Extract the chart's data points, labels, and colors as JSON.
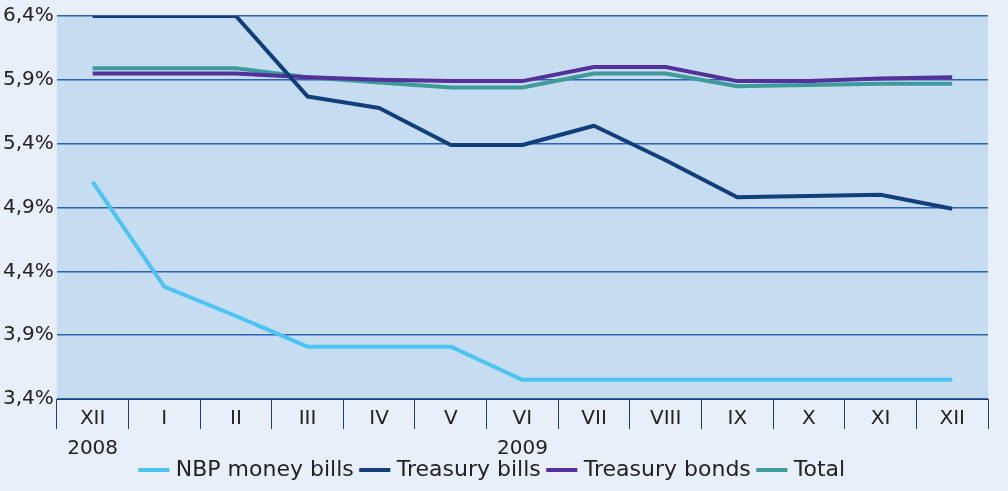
{
  "chart_data": {
    "type": "line",
    "categories": [
      "XII",
      "I",
      "II",
      "III",
      "IV",
      "V",
      "VI",
      "VII",
      "VIII",
      "IX",
      "X",
      "XI",
      "XII"
    ],
    "series": [
      {
        "name": "NBP money bills",
        "color": "#4cc3f0",
        "values": [
          5.1,
          4.28,
          4.05,
          3.81,
          3.81,
          3.81,
          3.55,
          3.55,
          3.55,
          3.55,
          3.55,
          3.55,
          3.55
        ]
      },
      {
        "name": "Treasury bills",
        "color": "#123f7a",
        "values": [
          6.4,
          6.4,
          6.4,
          5.77,
          5.68,
          5.39,
          5.39,
          5.54,
          5.27,
          4.98,
          4.99,
          5.0,
          4.89
        ]
      },
      {
        "name": "Treasury bonds",
        "color": "#54309a",
        "values": [
          5.95,
          5.95,
          5.95,
          5.92,
          5.9,
          5.89,
          5.89,
          6.0,
          6.0,
          5.89,
          5.89,
          5.91,
          5.92
        ]
      },
      {
        "name": "Total",
        "color": "#3f9a9c",
        "values": [
          5.99,
          5.99,
          5.99,
          5.92,
          5.88,
          5.84,
          5.84,
          5.95,
          5.95,
          5.85,
          5.86,
          5.87,
          5.87
        ]
      }
    ],
    "ylim": [
      3.4,
      6.4
    ],
    "yticks": [
      {
        "value": 3.4,
        "label": "3,4%"
      },
      {
        "value": 3.9,
        "label": "3,9%"
      },
      {
        "value": 4.4,
        "label": "4,4%"
      },
      {
        "value": 4.9,
        "label": "4,9%"
      },
      {
        "value": 5.4,
        "label": "5,4%"
      },
      {
        "value": 5.9,
        "label": "5,9%"
      },
      {
        "value": 6.4,
        "label": "6,4%"
      }
    ],
    "annotations": [
      "2008",
      "2009"
    ],
    "grid": "y",
    "legend": "bottom",
    "marker": "none",
    "line_style": "solid"
  }
}
